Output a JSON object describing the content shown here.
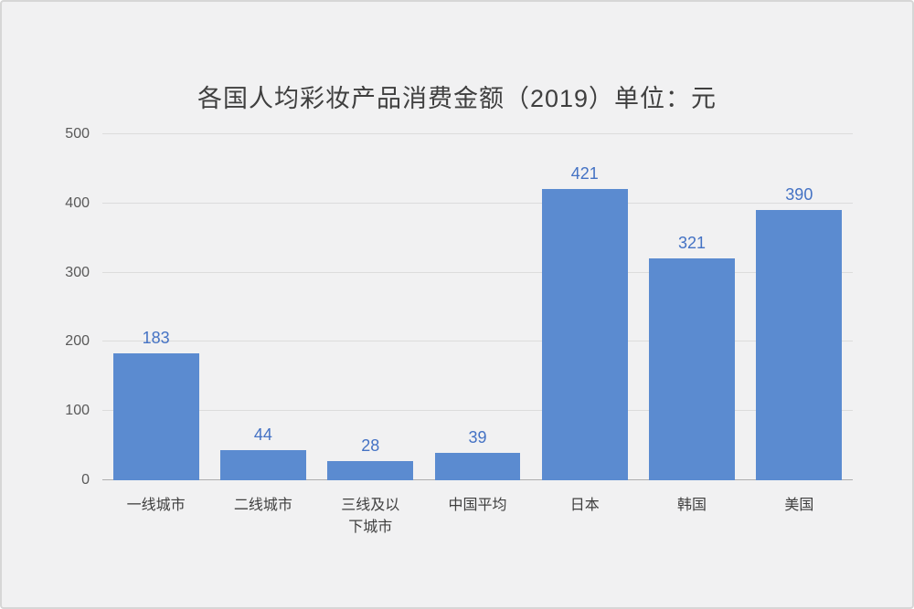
{
  "chart_data": {
    "type": "bar",
    "title": "各国人均彩妆产品消费金额（2019）单位：元",
    "categories": [
      "一线城市",
      "二线城市",
      "三线及以下城市",
      "中国平均",
      "日本",
      "韩国",
      "美国"
    ],
    "values": [
      183,
      44,
      28,
      39,
      421,
      321,
      390
    ],
    "xlabel": "",
    "ylabel": "",
    "ylim": [
      0,
      500
    ],
    "yticks": [
      0,
      100,
      200,
      300,
      400,
      500
    ],
    "grid": true,
    "legend_position": "none",
    "bar_color": "#5b8bd0",
    "value_label_color": "#4472c4",
    "axis_text_color": "#595959",
    "background_color": "#f1f1f2"
  }
}
